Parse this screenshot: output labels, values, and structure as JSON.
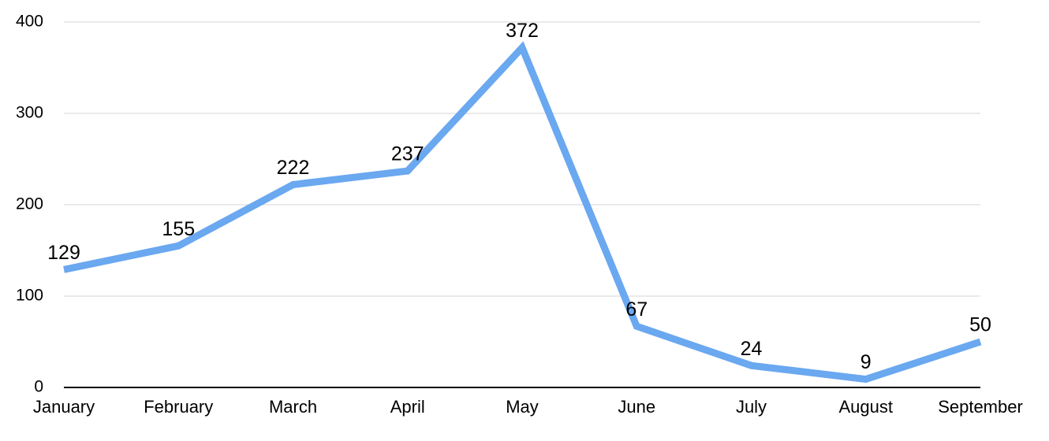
{
  "chart_data": {
    "type": "line",
    "categories": [
      "January",
      "February",
      "March",
      "April",
      "May",
      "June",
      "July",
      "August",
      "September"
    ],
    "series": [
      {
        "color": "#6aa8f0",
        "values": [
          129,
          155,
          222,
          237,
          372,
          67,
          24,
          9,
          50
        ]
      }
    ],
    "ylim": [
      0,
      400
    ],
    "yticks": [
      0,
      100,
      200,
      300,
      400
    ],
    "grid": true
  }
}
